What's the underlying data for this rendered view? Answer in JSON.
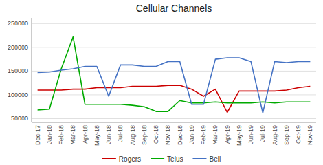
{
  "chart_data": {
    "type": "line",
    "title": "Cellular Channels",
    "categories": [
      "Dec-17",
      "Jan-18",
      "Feb-18",
      "Mar-18",
      "Apr-18",
      "May-18",
      "Jun-18",
      "Jul-18",
      "Aug-18",
      "Sep-18",
      "Oct-18",
      "Nov-18",
      "Dec-18",
      "Jan-19",
      "Feb-19",
      "Mar-19",
      "Apr-19",
      "May-19",
      "Jun-19",
      "Jul-19",
      "Aug-19",
      "Sep-19",
      "Oct-19",
      "Nov-19"
    ],
    "series": [
      {
        "name": "Rogers",
        "color": "#cc0000",
        "values": [
          110000,
          110000,
          110000,
          112000,
          112000,
          115000,
          115000,
          115000,
          118000,
          118000,
          118000,
          120000,
          120000,
          112000,
          97000,
          112000,
          63000,
          108000,
          108000,
          108000,
          108000,
          110000,
          115000,
          118000
        ]
      },
      {
        "name": "Telus",
        "color": "#00aa00",
        "values": [
          68000,
          70000,
          155000,
          222000,
          80000,
          80000,
          80000,
          80000,
          78000,
          75000,
          65000,
          65000,
          88000,
          83000,
          83000,
          85000,
          83000,
          83000,
          83000,
          85000,
          83000,
          85000,
          85000,
          85000
        ]
      },
      {
        "name": "Bell",
        "color": "#4472c4",
        "values": [
          147000,
          148000,
          152000,
          155000,
          160000,
          160000,
          97000,
          163000,
          163000,
          160000,
          160000,
          170000,
          170000,
          80000,
          80000,
          175000,
          178000,
          178000,
          170000,
          62000,
          170000,
          168000,
          170000,
          170000
        ]
      }
    ],
    "ylim": [
      42000,
      262000
    ],
    "yticks": [
      50000,
      100000,
      150000,
      200000,
      250000
    ],
    "grid": true,
    "legend": "bottom"
  }
}
